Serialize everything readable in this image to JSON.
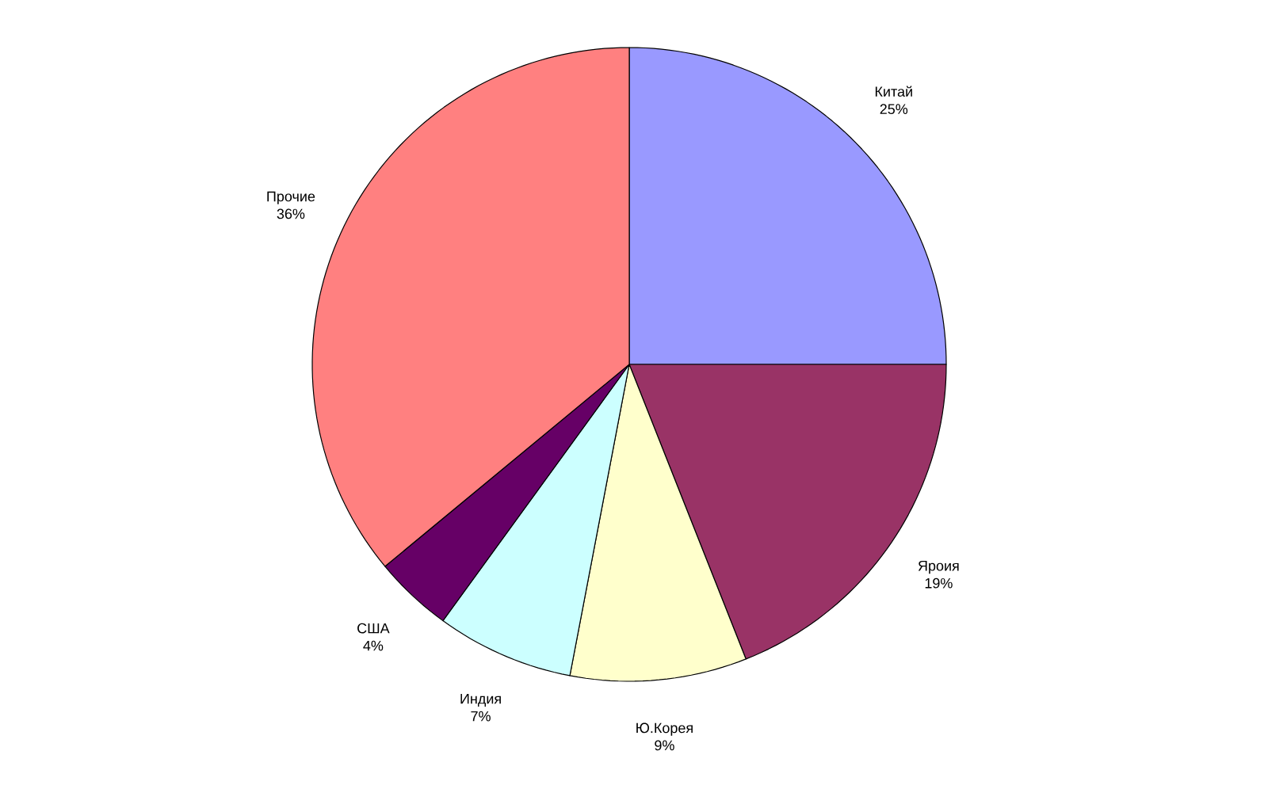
{
  "chart_data": {
    "type": "pie",
    "categories": [
      "Китай",
      "Яроия",
      "Ю.Корея",
      "Индия",
      "США",
      "Прочие"
    ],
    "values": [
      25,
      19,
      9,
      7,
      4,
      36
    ],
    "value_labels": [
      "25%",
      "19%",
      "9%",
      "7%",
      "4%",
      "36%"
    ],
    "colors": [
      "#9999ff",
      "#993366",
      "#ffffcc",
      "#ccffff",
      "#660066",
      "#ff8080"
    ]
  }
}
